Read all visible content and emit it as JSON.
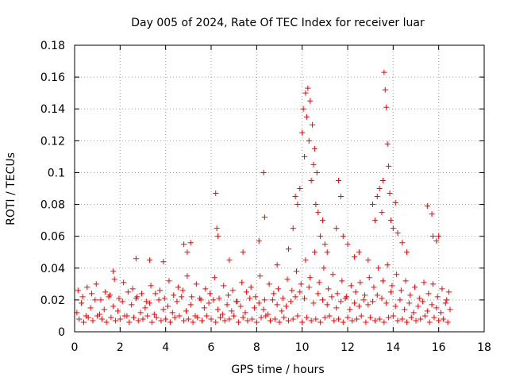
{
  "chart_data": {
    "type": "scatter",
    "title": "Day 005 of 2024, Rate Of TEC Index for receiver luar",
    "xlabel": "GPS time / hours",
    "ylabel": "ROTI / TECUs",
    "xlim": [
      0,
      18
    ],
    "ylim": [
      0,
      0.18
    ],
    "x_ticks": [
      0,
      2,
      4,
      6,
      8,
      10,
      12,
      14,
      16,
      18
    ],
    "y_ticks": [
      0,
      0.02,
      0.04,
      0.06,
      0.08,
      0.1,
      0.12,
      0.14,
      0.16,
      0.18
    ],
    "x_tick_labels": [
      "0",
      "2",
      "4",
      "6",
      "8",
      "10",
      "12",
      "14",
      "16",
      "18"
    ],
    "y_tick_labels": [
      "0",
      "0.02",
      "0.04",
      "0.06",
      "0.08",
      "0.1",
      "0.12",
      "0.14",
      "0.16",
      "0.18"
    ],
    "grid": true,
    "marker": "+",
    "marker_color": "#ff0000",
    "series": [
      {
        "name": "ROTI",
        "x": [
          0.1,
          0.3,
          0.5,
          0.7,
          0.9,
          1.1,
          1.3,
          1.5,
          1.7,
          1.9,
          2.1,
          2.3,
          2.5,
          2.7,
          2.9,
          3.1,
          3.3,
          3.5,
          3.7,
          3.9,
          4.1,
          4.3,
          4.5,
          4.7,
          4.9,
          5.1,
          5.3,
          5.5,
          5.7,
          5.9,
          6.1,
          6.3,
          6.5,
          6.7,
          6.9,
          7.1,
          7.3,
          7.5,
          7.7,
          7.9,
          8.1,
          8.3,
          8.5,
          8.7,
          8.9,
          9.1,
          9.3,
          9.5,
          9.7,
          9.9,
          10.1,
          10.3,
          10.5,
          10.7,
          10.9,
          11.1,
          11.3,
          11.5,
          11.7,
          11.9,
          12.1,
          12.3,
          12.5,
          12.7,
          12.9,
          13.1,
          13.3,
          13.5,
          13.7,
          13.9,
          14.1,
          14.3,
          14.5,
          14.7,
          14.9,
          15.1,
          15.3,
          15.5,
          15.7,
          15.9,
          16.1,
          16.3,
          16.5,
          0.2,
          0.4,
          0.6,
          0.8,
          1.0,
          1.2,
          1.4,
          1.6,
          1.8,
          2.0,
          2.2,
          2.4,
          2.6,
          2.8,
          3.0,
          3.2,
          3.4,
          3.6,
          3.8,
          4.0,
          4.2,
          4.4,
          4.6,
          4.8,
          5.0,
          5.2,
          5.4,
          5.6,
          5.8,
          6.0,
          6.2,
          6.4,
          6.6,
          6.8,
          7.0,
          7.2,
          7.4,
          7.6,
          7.8,
          8.0,
          8.2,
          8.4,
          8.6,
          8.8,
          9.0,
          9.2,
          9.4,
          9.6,
          9.8,
          10.0,
          10.2,
          10.4,
          10.6,
          10.8,
          11.0,
          11.2,
          11.4,
          11.6,
          11.8,
          12.0,
          12.2,
          12.4,
          12.6,
          12.8,
          13.0,
          13.2,
          13.4,
          13.6,
          13.8,
          14.0,
          14.2,
          14.4,
          14.6,
          14.8,
          15.0,
          15.2,
          15.4,
          15.6,
          15.8,
          16.0,
          16.2,
          16.4,
          0.15,
          0.55,
          0.95,
          1.35,
          1.75,
          2.15,
          2.55,
          2.95,
          3.35,
          3.75,
          4.15,
          4.55,
          4.95,
          5.35,
          5.75,
          6.15,
          6.55,
          6.95,
          7.35,
          7.75,
          8.15,
          8.55,
          8.95,
          9.35,
          9.75,
          10.15,
          10.55,
          10.95,
          11.35,
          11.75,
          12.15,
          12.55,
          12.95,
          13.35,
          13.75,
          14.15,
          14.55,
          14.95,
          15.35,
          15.75,
          16.15,
          16.45,
          0.35,
          0.75,
          1.15,
          1.55,
          1.95,
          2.35,
          2.75,
          3.15,
          3.55,
          3.95,
          4.35,
          4.75,
          5.15,
          5.55,
          5.95,
          6.35,
          6.75,
          7.15,
          7.55,
          7.95,
          8.35,
          8.75,
          9.15,
          9.55,
          9.95,
          10.35,
          10.75,
          11.15,
          11.55,
          11.95,
          12.35,
          12.75,
          13.15,
          13.55,
          13.95,
          14.35,
          14.75,
          15.15,
          15.55,
          15.95,
          16.35,
          1.7,
          2.7,
          3.3,
          3.9,
          4.8,
          4.95,
          5.1,
          6.2,
          6.25,
          6.3,
          6.8,
          7.4,
          8.1,
          8.3,
          8.35,
          8.9,
          9.4,
          9.6,
          9.7,
          9.8,
          9.9,
          10.0,
          10.05,
          10.1,
          10.15,
          10.2,
          10.25,
          10.3,
          10.35,
          10.4,
          10.45,
          10.5,
          10.55,
          10.6,
          10.65,
          10.7,
          10.8,
          10.9,
          11.0,
          11.1,
          11.5,
          11.6,
          11.7,
          11.8,
          12.0,
          12.3,
          12.5,
          12.9,
          13.1,
          13.2,
          13.3,
          13.4,
          13.5,
          13.55,
          13.6,
          13.65,
          13.7,
          13.75,
          13.8,
          13.85,
          13.9,
          14.0,
          14.1,
          14.2,
          14.4,
          14.6,
          15.5,
          15.7,
          15.75,
          15.9,
          16.0
        ],
        "y": [
          0.012,
          0.018,
          0.01,
          0.015,
          0.02,
          0.011,
          0.014,
          0.022,
          0.016,
          0.013,
          0.019,
          0.01,
          0.017,
          0.021,
          0.012,
          0.015,
          0.018,
          0.011,
          0.02,
          0.014,
          0.016,
          0.012,
          0.019,
          0.022,
          0.013,
          0.017,
          0.01,
          0.021,
          0.015,
          0.018,
          0.02,
          0.014,
          0.011,
          0.017,
          0.013,
          0.019,
          0.016,
          0.012,
          0.021,
          0.015,
          0.018,
          0.014,
          0.011,
          0.02,
          0.017,
          0.013,
          0.016,
          0.019,
          0.022,
          0.025,
          0.021,
          0.028,
          0.018,
          0.024,
          0.02,
          0.017,
          0.022,
          0.015,
          0.019,
          0.021,
          0.014,
          0.018,
          0.016,
          0.02,
          0.017,
          0.019,
          0.023,
          0.021,
          0.018,
          0.025,
          0.016,
          0.02,
          0.014,
          0.018,
          0.012,
          0.016,
          0.019,
          0.013,
          0.017,
          0.015,
          0.012,
          0.018,
          0.014,
          0.008,
          0.006,
          0.009,
          0.007,
          0.01,
          0.008,
          0.006,
          0.009,
          0.007,
          0.008,
          0.01,
          0.006,
          0.009,
          0.007,
          0.008,
          0.01,
          0.006,
          0.009,
          0.007,
          0.008,
          0.006,
          0.009,
          0.01,
          0.007,
          0.008,
          0.006,
          0.009,
          0.007,
          0.01,
          0.008,
          0.006,
          0.009,
          0.007,
          0.008,
          0.01,
          0.006,
          0.009,
          0.007,
          0.008,
          0.006,
          0.009,
          0.01,
          0.007,
          0.008,
          0.006,
          0.009,
          0.007,
          0.008,
          0.01,
          0.006,
          0.009,
          0.007,
          0.008,
          0.006,
          0.009,
          0.01,
          0.007,
          0.008,
          0.006,
          0.009,
          0.007,
          0.008,
          0.01,
          0.006,
          0.009,
          0.007,
          0.008,
          0.006,
          0.009,
          0.01,
          0.007,
          0.008,
          0.006,
          0.009,
          0.007,
          0.008,
          0.01,
          0.006,
          0.009,
          0.007,
          0.008,
          0.006,
          0.026,
          0.028,
          0.03,
          0.025,
          0.033,
          0.031,
          0.027,
          0.024,
          0.029,
          0.026,
          0.032,
          0.028,
          0.035,
          0.03,
          0.027,
          0.034,
          0.029,
          0.026,
          0.031,
          0.028,
          0.035,
          0.03,
          0.027,
          0.033,
          0.038,
          0.045,
          0.05,
          0.04,
          0.036,
          0.032,
          0.029,
          0.031,
          0.034,
          0.04,
          0.042,
          0.036,
          0.032,
          0.028,
          0.031,
          0.03,
          0.027,
          0.025,
          0.022,
          0.024,
          0.02,
          0.023,
          0.021,
          0.025,
          0.022,
          0.019,
          0.024,
          0.021,
          0.023,
          0.026,
          0.022,
          0.02,
          0.024,
          0.021,
          0.023,
          0.019,
          0.025,
          0.022,
          0.02,
          0.024,
          0.021,
          0.026,
          0.03,
          0.034,
          0.031,
          0.027,
          0.024,
          0.022,
          0.025,
          0.023,
          0.028,
          0.032,
          0.029,
          0.026,
          0.023,
          0.021,
          0.024,
          0.022,
          0.02,
          0.038,
          0.046,
          0.045,
          0.044,
          0.055,
          0.05,
          0.056,
          0.087,
          0.065,
          0.06,
          0.045,
          0.05,
          0.057,
          0.1,
          0.072,
          0.042,
          0.052,
          0.065,
          0.085,
          0.08,
          0.09,
          0.125,
          0.14,
          0.11,
          0.15,
          0.135,
          0.153,
          0.12,
          0.145,
          0.095,
          0.13,
          0.105,
          0.115,
          0.08,
          0.1,
          0.075,
          0.06,
          0.07,
          0.055,
          0.05,
          0.065,
          0.095,
          0.085,
          0.06,
          0.055,
          0.047,
          0.05,
          0.045,
          0.08,
          0.07,
          0.085,
          0.09,
          0.075,
          0.095,
          0.163,
          0.152,
          0.141,
          0.118,
          0.104,
          0.087,
          0.07,
          0.065,
          0.081,
          0.062,
          0.056,
          0.05,
          0.079,
          0.074,
          0.06,
          0.057,
          0.06
        ]
      }
    ]
  }
}
